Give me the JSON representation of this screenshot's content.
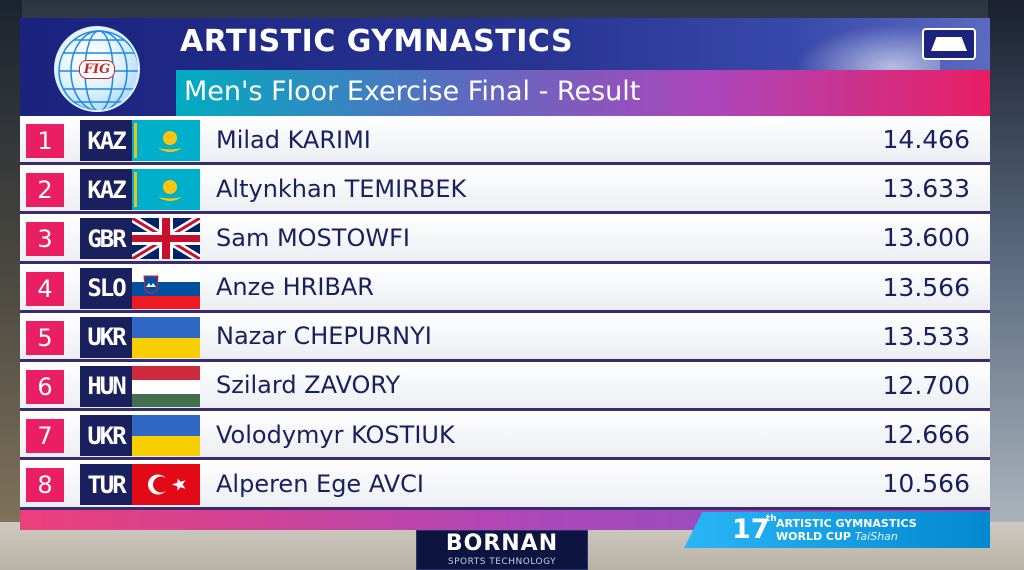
{
  "header": {
    "title": "ARTISTIC GYMNASTICS",
    "subtitle": "Men's Floor Exercise Final - Result",
    "logo_text": "FIG",
    "apparatus_icon": "floor-mat-icon"
  },
  "results": [
    {
      "rank": "1",
      "country": "KAZ",
      "flag": "kaz",
      "name": "Milad KARIMI",
      "score": "14.466"
    },
    {
      "rank": "2",
      "country": "KAZ",
      "flag": "kaz",
      "name": "Altynkhan TEMIRBEK",
      "score": "13.633"
    },
    {
      "rank": "3",
      "country": "GBR",
      "flag": "gbr",
      "name": "Sam MOSTOWFI",
      "score": "13.600"
    },
    {
      "rank": "4",
      "country": "SLO",
      "flag": "slo",
      "name": "Anze HRIBAR",
      "score": "13.566"
    },
    {
      "rank": "5",
      "country": "UKR",
      "flag": "ukr",
      "name": "Nazar CHEPURNYI",
      "score": "13.533"
    },
    {
      "rank": "6",
      "country": "HUN",
      "flag": "hun",
      "name": "Szilard ZAVORY",
      "score": "12.700"
    },
    {
      "rank": "7",
      "country": "UKR",
      "flag": "ukr",
      "name": "Volodymyr KOSTIUK",
      "score": "12.666"
    },
    {
      "rank": "8",
      "country": "TUR",
      "flag": "tur",
      "name": "Alperen Ege AVCI",
      "score": "10.566"
    }
  ],
  "event": {
    "number": "17",
    "superscript": "th",
    "line1": "ARTISTIC GYMNASTICS",
    "line2": "WORLD CUP",
    "city": "TaiShan"
  },
  "sponsor": {
    "name": "BORNAN",
    "tagline": "SPORTS TECHNOLOGY"
  },
  "colors": {
    "header_bg": "#1a237e",
    "rank_bg": "#e91e63",
    "code_bg": "#1a1f5e",
    "row_text": "#1a1f5e"
  }
}
